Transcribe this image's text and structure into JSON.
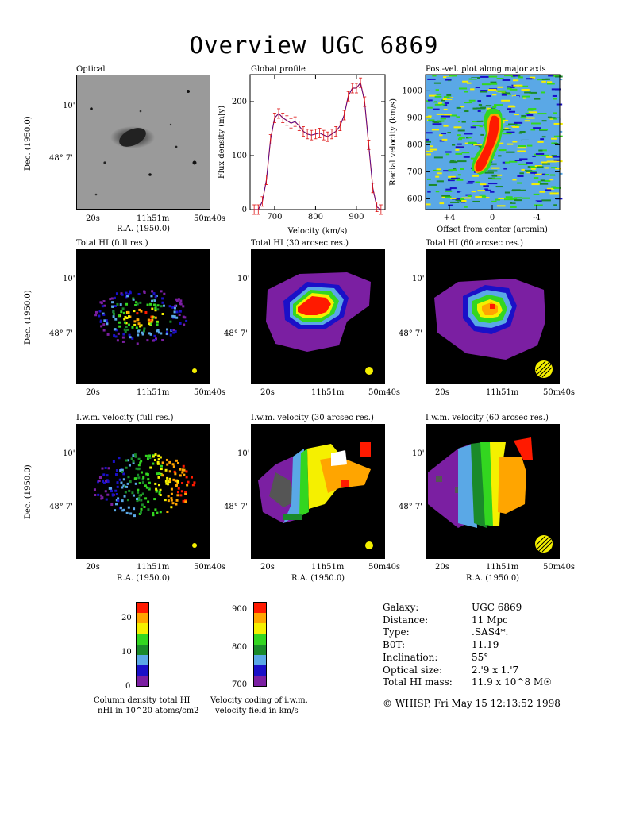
{
  "title": "Overview UGC 6869",
  "panels": {
    "optical": "Optical",
    "global_profile": "Global profile",
    "pv": "Pos.-vel. plot along major axis",
    "hi_full": "Total HI (full res.)",
    "hi_30": "Total HI (30 arcsec res.)",
    "hi_60": "Total HI (60 arcsec res.)",
    "vel_full": "I.w.m. velocity (full res.)",
    "vel_30": "I.w.m. velocity (30 arcsec res.)",
    "vel_60": "I.w.m. velocity (60 arcsec res.)"
  },
  "axes": {
    "dec_label": "Dec. (1950.0)",
    "ra_label": "R.A. (1950.0)",
    "dec_ticks": [
      "10'",
      "48° 7'"
    ],
    "ra_ticks": [
      "20s",
      "11h51m",
      "50m40s"
    ],
    "flux_label": "Flux density (mJy)",
    "velocity_label": "Velocity (km/s)",
    "radial_velocity_label": "Radial velocity (km/s)",
    "offset_label": "Offset from center (arcmin)"
  },
  "colorbars": {
    "column_density": {
      "caption1": "Column density total HI",
      "caption2": "nHI in 10^20 atoms/cm2",
      "ticks": [
        "20",
        "10",
        "0"
      ]
    },
    "velocity": {
      "caption1": "Velocity coding of i.w.m.",
      "caption2": "velocity field in km/s",
      "ticks": [
        "900",
        "800",
        "700"
      ]
    },
    "colors": [
      "#7b1fa2",
      "#1a10c8",
      "#5aa8e6",
      "#1a8a2a",
      "#33d620",
      "#f5f000",
      "#ffa500",
      "#ff1a00"
    ]
  },
  "info": {
    "rows": [
      {
        "key": "Galaxy:",
        "value": "UGC 6869"
      },
      {
        "key": "Distance:",
        "value": "11 Mpc"
      },
      {
        "key": "Type:",
        "value": ".SAS4*."
      },
      {
        "key": "B0T:",
        "value": "11.19"
      },
      {
        "key": "Inclination:",
        "value": "55°"
      },
      {
        "key": "Optical size:",
        "value": "2.'9 x 1.'7"
      },
      {
        "key": "Total HI mass:",
        "value": "11.9 x 10^8 M☉"
      }
    ],
    "credit": "© WHISP, Fri May 15 12:13:52 1998"
  },
  "chart_data": [
    {
      "type": "line",
      "title": "Global profile",
      "xlabel": "Velocity (km/s)",
      "ylabel": "Flux density (mJy)",
      "xlim": [
        640,
        970
      ],
      "ylim": [
        0,
        250
      ],
      "xticks": [
        700,
        800,
        900
      ],
      "yticks": [
        0,
        100,
        200
      ],
      "x": [
        650,
        660,
        670,
        680,
        690,
        700,
        710,
        720,
        730,
        740,
        750,
        760,
        770,
        780,
        790,
        800,
        810,
        820,
        830,
        840,
        850,
        860,
        870,
        880,
        890,
        900,
        910,
        920,
        930,
        940,
        950,
        960
      ],
      "y": [
        0,
        0,
        15,
        55,
        130,
        170,
        178,
        170,
        165,
        160,
        163,
        155,
        145,
        140,
        138,
        140,
        142,
        138,
        135,
        140,
        145,
        155,
        175,
        210,
        225,
        225,
        235,
        200,
        120,
        40,
        5,
        0
      ]
    },
    {
      "type": "heatmap",
      "title": "Pos.-vel. plot along major axis",
      "xlabel": "Offset from center (arcmin)",
      "ylabel": "Radial velocity (km/s)",
      "xticks": [
        "+4",
        "0",
        "-4"
      ],
      "yticks": [
        600,
        700,
        800,
        900,
        1000
      ]
    }
  ]
}
